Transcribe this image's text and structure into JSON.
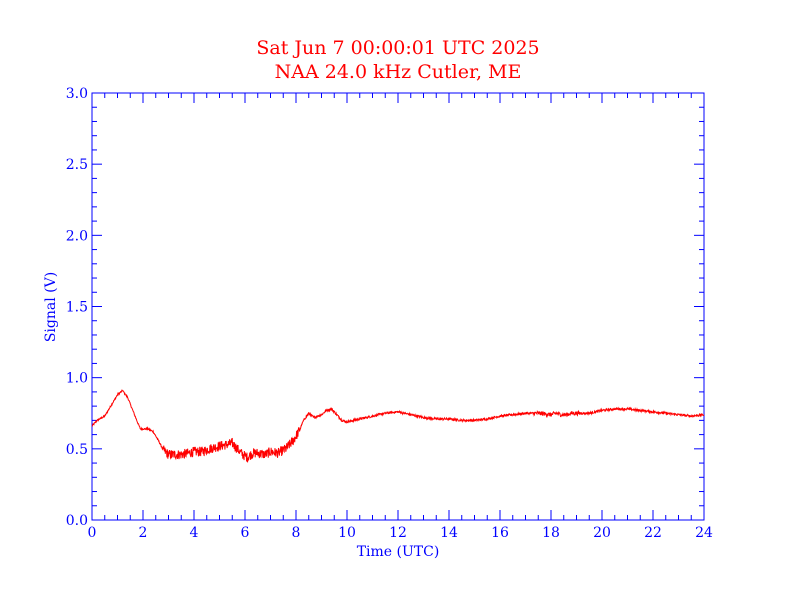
{
  "chart_data": {
    "type": "line",
    "title": "Sat Jun 7 00:00:01 UTC 2025",
    "subtitle": "NAA 24.0 kHz Cutler, ME",
    "xlabel": "Time (UTC)",
    "ylabel": "Signal (V)",
    "xlim": [
      0,
      24
    ],
    "ylim": [
      0,
      3.0
    ],
    "x_ticks": [
      "0",
      "2",
      "4",
      "6",
      "8",
      "10",
      "12",
      "14",
      "16",
      "18",
      "20",
      "22",
      "24"
    ],
    "y_ticks": [
      "0.0",
      "0.5",
      "1.0",
      "1.5",
      "2.0",
      "2.5",
      "3.0"
    ],
    "grid": false,
    "series": [
      {
        "x": [
          0,
          0.2,
          0.5,
          0.8,
          1.0,
          1.2,
          1.4,
          1.6,
          1.8,
          1.9,
          2.0,
          2.2,
          2.4,
          2.6,
          2.8,
          3.0,
          3.2,
          3.5,
          3.8,
          4.0,
          4.3,
          4.6,
          5.0,
          5.3,
          5.5,
          5.7,
          5.9,
          6.1,
          6.3,
          6.5,
          6.8,
          7.0,
          7.3,
          7.6,
          7.9,
          8.1,
          8.3,
          8.5,
          8.7,
          9.0,
          9.2,
          9.4,
          9.6,
          9.8,
          10.0,
          10.5,
          11.0,
          11.5,
          12.0,
          12.5,
          13.0,
          13.5,
          14.0,
          14.5,
          15.0,
          15.5,
          16.0,
          16.5,
          17.0,
          17.5,
          18.0,
          18.2,
          18.4,
          18.6,
          18.8,
          19.0,
          19.5,
          20.0,
          20.5,
          21.0,
          21.5,
          22.0,
          22.5,
          23.0,
          23.5,
          24.0
        ],
        "values": [
          0.66,
          0.7,
          0.73,
          0.82,
          0.88,
          0.91,
          0.86,
          0.77,
          0.68,
          0.64,
          0.64,
          0.64,
          0.62,
          0.56,
          0.49,
          0.46,
          0.46,
          0.46,
          0.47,
          0.48,
          0.48,
          0.5,
          0.52,
          0.53,
          0.54,
          0.5,
          0.46,
          0.44,
          0.47,
          0.47,
          0.46,
          0.48,
          0.47,
          0.5,
          0.56,
          0.62,
          0.7,
          0.75,
          0.72,
          0.74,
          0.77,
          0.78,
          0.74,
          0.7,
          0.69,
          0.71,
          0.73,
          0.75,
          0.76,
          0.74,
          0.72,
          0.71,
          0.71,
          0.7,
          0.7,
          0.71,
          0.73,
          0.74,
          0.75,
          0.75,
          0.74,
          0.75,
          0.74,
          0.74,
          0.75,
          0.75,
          0.75,
          0.77,
          0.78,
          0.78,
          0.77,
          0.76,
          0.75,
          0.74,
          0.73,
          0.74
        ]
      }
    ],
    "colors": {
      "title": "#ff0000",
      "series": "#ff0000",
      "axes": "#0000ff"
    }
  }
}
